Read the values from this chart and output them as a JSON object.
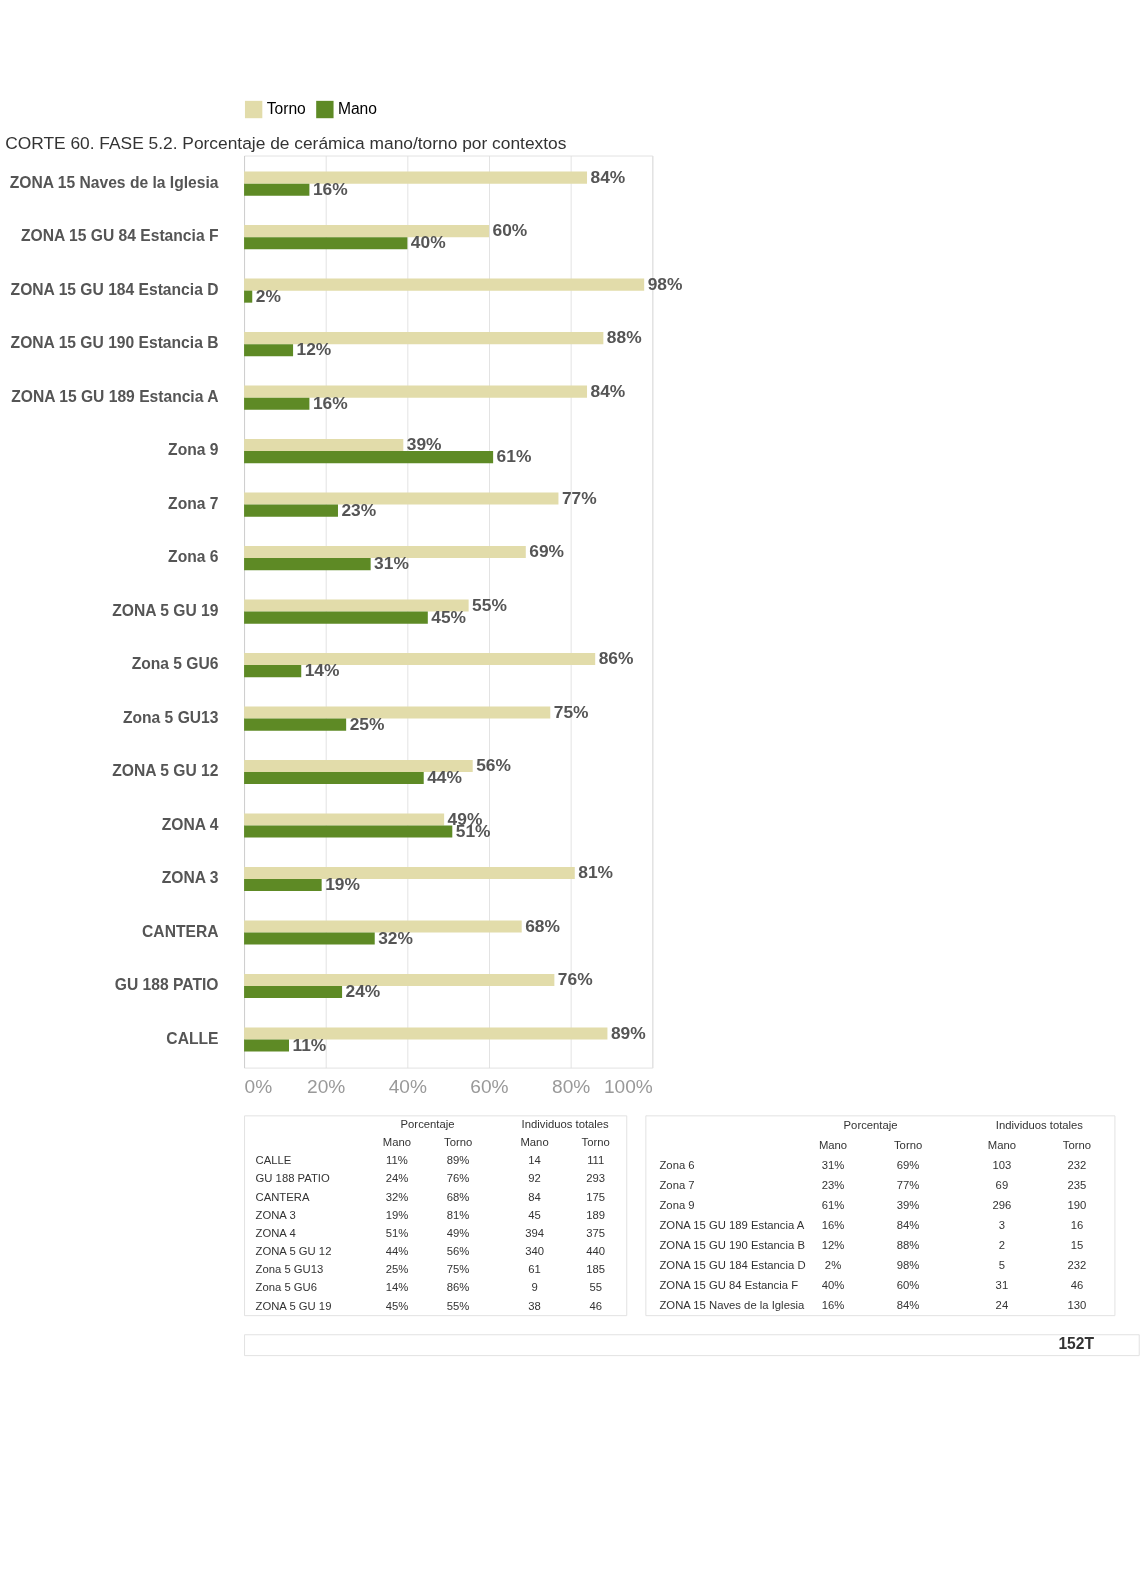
{
  "chart_data": [
    {
      "type": "bar",
      "orientation": "horizontal",
      "title": "CORTE 60. FASE 5.2. Porcentaje de cerámica mano/torno por contextos",
      "categories": [
        "ZONA 15 Naves de la Iglesia",
        "ZONA 15 GU 84  Estancia F",
        "ZONA 15 GU 184  Estancia D",
        "ZONA 15 GU 190  Estancia B",
        "ZONA 15 GU 189  Estancia A",
        "Zona 9",
        "Zona 7",
        "Zona 6",
        "ZONA 5 GU 19",
        "Zona 5 GU6",
        "Zona 5 GU13",
        "ZONA 5 GU 12",
        "ZONA 4",
        "ZONA 3",
        "CANTERA",
        "GU 188 PATIO",
        "CALLE"
      ],
      "series": [
        {
          "name": "Torno",
          "color": "#e2dcaa",
          "values": [
            84,
            60,
            98,
            88,
            84,
            39,
            77,
            69,
            55,
            86,
            75,
            56,
            49,
            81,
            68,
            76,
            89
          ],
          "value_labels": [
            "84%",
            "60%",
            "98%",
            "88%",
            "84%",
            "39%",
            "77%",
            "69%",
            "55%",
            "86%",
            "75%",
            "56%",
            "49%",
            "81%",
            "68%",
            "76%",
            "89%"
          ]
        },
        {
          "name": "Mano",
          "color": "#5e8a25",
          "values": [
            16,
            40,
            2,
            12,
            16,
            61,
            23,
            31,
            45,
            14,
            25,
            44,
            51,
            19,
            32,
            24,
            11
          ],
          "value_labels": [
            "16%",
            "40%",
            "2%",
            "12%",
            "16%",
            "61%",
            "23%",
            "31%",
            "45%",
            "14%",
            "25%",
            "44%",
            "51%",
            "19%",
            "32%",
            "24%",
            "11%"
          ]
        }
      ],
      "xlim": [
        0,
        100
      ],
      "xticks": [
        {
          "value": 0,
          "label": "0%"
        },
        {
          "value": 20,
          "label": "20%"
        },
        {
          "value": 40,
          "label": "40%"
        },
        {
          "value": 60,
          "label": "60%"
        },
        {
          "value": 80,
          "label": "80%"
        },
        {
          "value": 100,
          "label": "100%"
        }
      ],
      "grid": "x",
      "legend": "top"
    },
    {
      "type": "other",
      "annotations": [
        "Porcentaje",
        "Individuos totales",
        "Mano",
        "Torno",
        "Mano",
        "Torno",
        "CALLE",
        "11%",
        "89%",
        "14",
        "111",
        "GU 188 PATIO",
        "24%",
        "76%",
        "92",
        "293",
        "CANTERA",
        "32%",
        "68%",
        "84",
        "175",
        "ZONA 3",
        "19%",
        "81%",
        "45",
        "189",
        "ZONA 4",
        "51%",
        "49%",
        "394",
        "375",
        "ZONA 5 GU 12",
        "44%",
        "56%",
        "340",
        "440",
        "Zona 5 GU13",
        "25%",
        "75%",
        "61",
        "185",
        "Zona 5 GU6",
        "14%",
        "86%",
        "9",
        "55",
        "ZONA 5 GU 19",
        "45%",
        "55%",
        "38",
        "46"
      ]
    },
    {
      "type": "other",
      "annotations": [
        "Porcentaje",
        "Individuos totales",
        "Mano",
        "Torno",
        "Mano",
        "Torno",
        "Zona 6",
        "31%",
        "69%",
        "103",
        "232",
        "Zona 7",
        "23%",
        "77%",
        "69",
        "235",
        "Zona 9",
        "61%",
        "39%",
        "296",
        "190",
        "ZONA 15 GU 189  Estancia A",
        "16%",
        "84%",
        "3",
        "16",
        "ZONA 15 GU 190  Estancia B",
        "12%",
        "88%",
        "2",
        "15",
        "ZONA 15 GU 184  Estancia D",
        "2%",
        "98%",
        "5",
        "232",
        "ZONA 15 GU 84  Estancia F",
        "40%",
        "60%",
        "31",
        "46",
        "ZONA 15 Naves de la Iglesia",
        "16%",
        "84%",
        "24",
        "130"
      ]
    },
    {
      "type": "other",
      "annotations": [
        "152T"
      ]
    }
  ]
}
